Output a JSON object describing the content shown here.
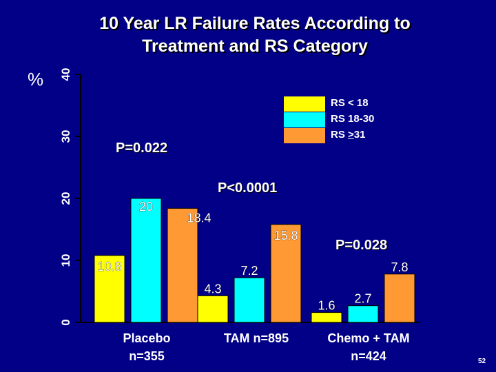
{
  "title_line1": "10 Year LR Failure Rates According to",
  "title_line2": "Treatment and RS Category",
  "y_unit_label": "%",
  "slide_number": "52",
  "colors": {
    "background": "#020087",
    "rs_low": "#FFFF00",
    "rs_mid": "#00FFFF",
    "rs_high": "#FF9933",
    "axis": "#000000"
  },
  "legend": [
    {
      "prefix": "RS < 18",
      "underline": "",
      "suffix": "",
      "color": "#FFFF00"
    },
    {
      "prefix": "RS 18-30",
      "underline": "",
      "suffix": "",
      "color": "#00FFFF"
    },
    {
      "prefix": "RS ",
      "underline": ">",
      "suffix": "31",
      "color": "#FF9933"
    }
  ],
  "p_values": {
    "placebo": "P=0.022",
    "tam": "P<0.0001",
    "chemo_tam": "P=0.028"
  },
  "chart_data": {
    "type": "bar",
    "title": "10 Year LR Failure Rates According to Treatment and RS Category",
    "ylabel": "%",
    "ylim": [
      0,
      40
    ],
    "yticks": [
      "0",
      "10",
      "20",
      "30",
      "40"
    ],
    "categories": [
      "Placebo n=355",
      "TAM n=895",
      "Chemo + TAM n=424"
    ],
    "category_labels": [
      [
        "Placebo",
        "n=355"
      ],
      [
        "TAM n=895"
      ],
      [
        "Chemo + TAM",
        "n=424"
      ]
    ],
    "series": [
      {
        "name": "RS < 18",
        "color": "#FFFF00",
        "values": [
          10.8,
          4.3,
          1.6
        ]
      },
      {
        "name": "RS 18-30",
        "color": "#00FFFF",
        "values": [
          20,
          7.2,
          2.7
        ]
      },
      {
        "name": "RS >31",
        "color": "#FF9933",
        "values": [
          18.4,
          15.8,
          7.8
        ]
      }
    ],
    "data_labels": [
      [
        "10.8",
        "4.3",
        "1.6"
      ],
      [
        "20",
        "7.2",
        "2.7"
      ],
      [
        "18.4",
        "15.8",
        "7.8"
      ]
    ]
  }
}
